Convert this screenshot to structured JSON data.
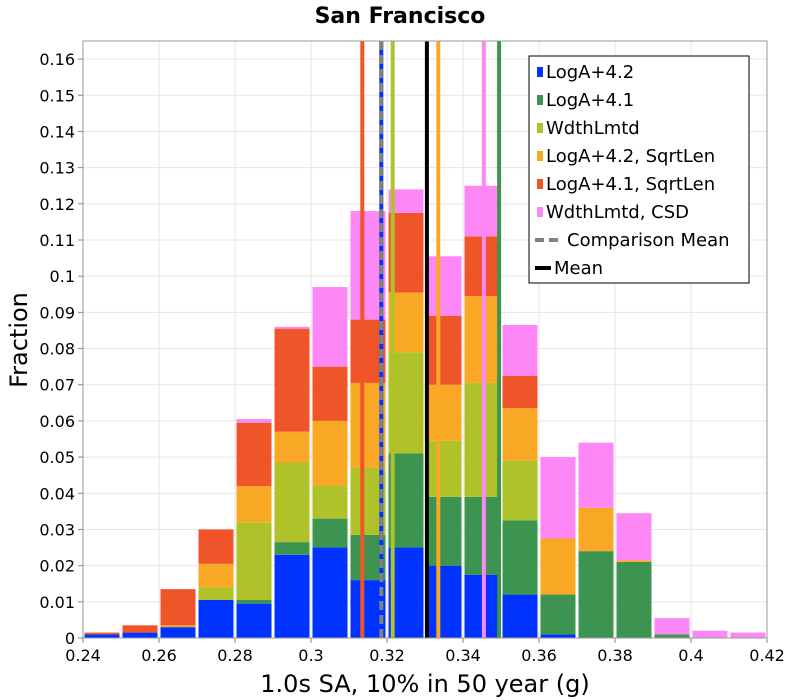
{
  "chart_data": {
    "type": "bar",
    "stacked": true,
    "title": "San Francisco",
    "xlabel": "1.0s SA, 10% in 50 year (g)",
    "ylabel": "Fraction",
    "xlim": [
      0.24,
      0.42
    ],
    "ylim": [
      0,
      0.165
    ],
    "grid": true,
    "legend_position": "top-right",
    "bin_width": 0.01,
    "x_ticks": [
      "0.24",
      "0.26",
      "0.28",
      "0.3",
      "0.32",
      "0.34",
      "0.36",
      "0.38",
      "0.4",
      "0.42"
    ],
    "y_ticks": [
      "0",
      "0.01",
      "0.02",
      "0.03",
      "0.04",
      "0.05",
      "0.06",
      "0.07",
      "0.08",
      "0.09",
      "0.1",
      "0.11",
      "0.12",
      "0.13",
      "0.14",
      "0.15",
      "0.16"
    ],
    "bin_starts": [
      0.24,
      0.25,
      0.26,
      0.27,
      0.28,
      0.29,
      0.3,
      0.31,
      0.32,
      0.33,
      0.34,
      0.35,
      0.36,
      0.37,
      0.38,
      0.39,
      0.4,
      0.41
    ],
    "series": [
      {
        "name": "LogA+4.2",
        "color": "#0033ff",
        "values": [
          0.001,
          0.0015,
          0.003,
          0.0105,
          0.0095,
          0.023,
          0.025,
          0.016,
          0.025,
          0.02,
          0.0175,
          0.012,
          0.001,
          0,
          0,
          0,
          0,
          0
        ]
      },
      {
        "name": "LogA+4.1",
        "color": "#3d9450",
        "values": [
          0,
          0,
          0,
          0,
          0.001,
          0.0035,
          0.008,
          0.0125,
          0.026,
          0.019,
          0.0215,
          0.0205,
          0.011,
          0.024,
          0.021,
          0.001,
          0,
          0
        ]
      },
      {
        "name": "WdthLmtd",
        "color": "#b0c22a",
        "values": [
          0,
          0,
          0,
          0.0035,
          0.0215,
          0.022,
          0.009,
          0.0185,
          0.028,
          0.0155,
          0.0315,
          0.0165,
          0,
          0,
          0,
          0,
          0,
          0
        ]
      },
      {
        "name": "LogA+4.2, SqrtLen",
        "color": "#f9a825",
        "values": [
          0,
          0,
          0.0005,
          0.0065,
          0.01,
          0.0085,
          0.018,
          0.0235,
          0.0165,
          0.0155,
          0.024,
          0.0145,
          0.0155,
          0.012,
          0.0005,
          0,
          0,
          0
        ]
      },
      {
        "name": "LogA+4.1, SqrtLen",
        "color": "#f0552a",
        "values": [
          0.0005,
          0.002,
          0.01,
          0.0095,
          0.0175,
          0.0285,
          0.015,
          0.0175,
          0.022,
          0.019,
          0.0165,
          0.009,
          0,
          0,
          0,
          0,
          0,
          0
        ]
      },
      {
        "name": "WdthLmtd, CSD",
        "color": "#fd88f5",
        "values": [
          0,
          0,
          0,
          0,
          0.001,
          0.0005,
          0.022,
          0.03,
          0.0065,
          0.0165,
          0.014,
          0.014,
          0.0225,
          0.018,
          0.013,
          0.0045,
          0.002,
          0.0015
        ]
      }
    ],
    "reference_lines": [
      {
        "name": "Comparison Mean",
        "style": "dashed",
        "color": "#808080",
        "x": 0.3185
      },
      {
        "name": "Mean",
        "style": "solid",
        "color": "#000000",
        "x": 0.3305
      }
    ],
    "series_means": [
      {
        "series": "LogA+4.2",
        "x": 0.3185
      },
      {
        "series": "LogA+4.1",
        "x": 0.3495
      },
      {
        "series": "WdthLmtd",
        "x": 0.3215
      },
      {
        "series": "LogA+4.2, SqrtLen",
        "x": 0.3335
      },
      {
        "series": "LogA+4.1, SqrtLen",
        "x": 0.3135
      },
      {
        "series": "WdthLmtd, CSD",
        "x": 0.3455
      }
    ]
  }
}
